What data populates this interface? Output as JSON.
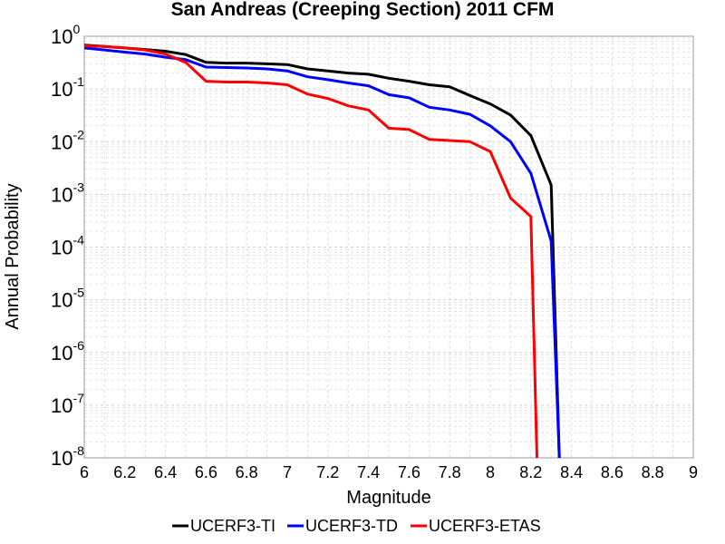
{
  "chart_data": {
    "type": "line",
    "title": "San Andreas (Creeping Section) 2011 CFM",
    "xlabel": "Magnitude",
    "ylabel": "Annual Probability",
    "xlim": [
      6,
      9
    ],
    "ylim": [
      1e-08,
      1
    ],
    "y_scale": "log",
    "grid": true,
    "legend_position": "bottom",
    "x_ticks": [
      "6",
      "6.2",
      "6.4",
      "6.6",
      "6.8",
      "7",
      "7.2",
      "7.4",
      "7.6",
      "7.8",
      "8",
      "8.2",
      "8.4",
      "8.6",
      "8.8",
      "9"
    ],
    "y_ticks": [
      {
        "base": "10",
        "exp": "0"
      },
      {
        "base": "10",
        "exp": "-1"
      },
      {
        "base": "10",
        "exp": "-2"
      },
      {
        "base": "10",
        "exp": "-3"
      },
      {
        "base": "10",
        "exp": "-4"
      },
      {
        "base": "10",
        "exp": "-5"
      },
      {
        "base": "10",
        "exp": "-6"
      },
      {
        "base": "10",
        "exp": "-7"
      },
      {
        "base": "10",
        "exp": "-8"
      }
    ],
    "series": [
      {
        "name": "UCERF3-TI",
        "color": "#000000",
        "x": [
          6.0,
          6.1,
          6.2,
          6.3,
          6.4,
          6.5,
          6.6,
          6.7,
          6.8,
          6.9,
          7.0,
          7.1,
          7.2,
          7.3,
          7.4,
          7.5,
          7.6,
          7.7,
          7.8,
          7.9,
          8.0,
          8.1,
          8.2,
          8.3,
          8.34,
          8.36
        ],
        "y": [
          0.68,
          0.64,
          0.6,
          0.56,
          0.52,
          0.45,
          0.32,
          0.31,
          0.31,
          0.3,
          0.29,
          0.24,
          0.22,
          0.2,
          0.19,
          0.16,
          0.14,
          0.12,
          0.11,
          0.075,
          0.052,
          0.032,
          0.013,
          0.0015,
          1e-08,
          1e-09
        ]
      },
      {
        "name": "UCERF3-TD",
        "color": "#0000ff",
        "x": [
          6.0,
          6.1,
          6.2,
          6.3,
          6.4,
          6.5,
          6.6,
          6.7,
          6.8,
          6.9,
          7.0,
          7.1,
          7.2,
          7.3,
          7.4,
          7.5,
          7.6,
          7.7,
          7.8,
          7.9,
          8.0,
          8.1,
          8.2,
          8.3,
          8.34,
          8.36
        ],
        "y": [
          0.6,
          0.55,
          0.5,
          0.46,
          0.4,
          0.36,
          0.26,
          0.255,
          0.25,
          0.24,
          0.22,
          0.17,
          0.15,
          0.13,
          0.115,
          0.078,
          0.068,
          0.045,
          0.04,
          0.033,
          0.02,
          0.01,
          0.0025,
          0.00013,
          1e-08,
          1e-09
        ]
      },
      {
        "name": "UCERF3-ETAS",
        "color": "#ff0000",
        "x": [
          6.0,
          6.1,
          6.2,
          6.3,
          6.4,
          6.5,
          6.6,
          6.7,
          6.8,
          6.9,
          7.0,
          7.1,
          7.2,
          7.3,
          7.4,
          7.5,
          7.6,
          7.7,
          7.8,
          7.9,
          8.0,
          8.1,
          8.2,
          8.23,
          8.24
        ],
        "y": [
          0.66,
          0.64,
          0.6,
          0.55,
          0.46,
          0.32,
          0.14,
          0.135,
          0.135,
          0.13,
          0.12,
          0.08,
          0.066,
          0.048,
          0.04,
          0.018,
          0.017,
          0.011,
          0.0105,
          0.01,
          0.0065,
          0.00085,
          0.00038,
          1e-08,
          1e-09
        ]
      }
    ]
  }
}
